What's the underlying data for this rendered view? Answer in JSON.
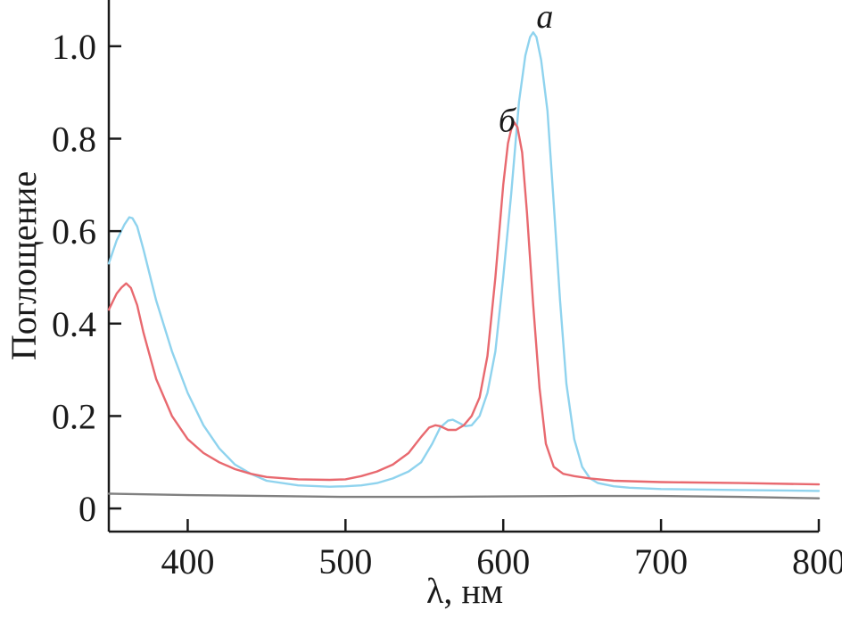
{
  "chart_data": {
    "type": "line",
    "xlabel": "λ, нм",
    "ylabel": "Поглощение",
    "xlim": [
      350,
      800
    ],
    "ylim": [
      -0.05,
      1.1
    ],
    "x_ticks": [
      400,
      500,
      600,
      700,
      800
    ],
    "y_ticks": [
      0,
      0.2,
      0.4,
      0.6,
      0.8,
      1.0
    ],
    "y_tick_labels": [
      "0",
      "0.2",
      "0.4",
      "0.6",
      "0.8",
      "1.0"
    ],
    "grid": false,
    "series": [
      {
        "name": "a",
        "color": "#8fd3ee",
        "x": [
          350,
          355,
          360,
          363,
          365,
          368,
          372,
          380,
          390,
          400,
          410,
          420,
          430,
          440,
          450,
          470,
          490,
          500,
          510,
          520,
          530,
          540,
          548,
          555,
          560,
          565,
          568,
          572,
          576,
          580,
          585,
          590,
          595,
          600,
          605,
          610,
          614,
          617,
          619,
          621,
          624,
          628,
          632,
          636,
          640,
          645,
          650,
          655,
          660,
          670,
          680,
          700,
          750,
          800
        ],
        "y": [
          0.53,
          0.58,
          0.615,
          0.63,
          0.628,
          0.61,
          0.56,
          0.45,
          0.34,
          0.25,
          0.18,
          0.13,
          0.095,
          0.075,
          0.06,
          0.05,
          0.047,
          0.048,
          0.05,
          0.055,
          0.065,
          0.08,
          0.1,
          0.14,
          0.175,
          0.19,
          0.192,
          0.185,
          0.178,
          0.18,
          0.2,
          0.25,
          0.34,
          0.5,
          0.68,
          0.88,
          0.98,
          1.02,
          1.03,
          1.02,
          0.97,
          0.86,
          0.66,
          0.45,
          0.27,
          0.15,
          0.09,
          0.065,
          0.055,
          0.048,
          0.045,
          0.042,
          0.04,
          0.038
        ]
      },
      {
        "name": "б",
        "color": "#e8696f",
        "x": [
          350,
          355,
          358,
          361,
          364,
          368,
          372,
          380,
          390,
          400,
          410,
          420,
          430,
          440,
          450,
          470,
          490,
          500,
          510,
          520,
          530,
          540,
          548,
          553,
          557,
          560,
          565,
          570,
          575,
          580,
          585,
          590,
          595,
          600,
          603,
          605,
          607,
          609,
          612,
          615,
          619,
          623,
          627,
          632,
          638,
          645,
          655,
          670,
          700,
          750,
          800
        ],
        "y": [
          0.43,
          0.465,
          0.478,
          0.487,
          0.477,
          0.44,
          0.38,
          0.28,
          0.2,
          0.15,
          0.12,
          0.1,
          0.085,
          0.075,
          0.068,
          0.063,
          0.062,
          0.063,
          0.07,
          0.08,
          0.095,
          0.12,
          0.155,
          0.175,
          0.18,
          0.178,
          0.17,
          0.17,
          0.18,
          0.2,
          0.24,
          0.33,
          0.5,
          0.7,
          0.79,
          0.82,
          0.835,
          0.825,
          0.77,
          0.64,
          0.44,
          0.26,
          0.14,
          0.09,
          0.075,
          0.07,
          0.065,
          0.06,
          0.057,
          0.055,
          0.052
        ]
      },
      {
        "name": "",
        "color": "#808080",
        "x": [
          350,
          400,
          450,
          500,
          550,
          600,
          650,
          700,
          750,
          800
        ],
        "y": [
          0.032,
          0.029,
          0.027,
          0.025,
          0.025,
          0.026,
          0.027,
          0.027,
          0.025,
          0.022
        ]
      }
    ],
    "annotations": [
      {
        "text": "a",
        "x": 621,
        "y": 1.04
      },
      {
        "text": "б",
        "x": 597,
        "y": 0.815
      }
    ]
  }
}
